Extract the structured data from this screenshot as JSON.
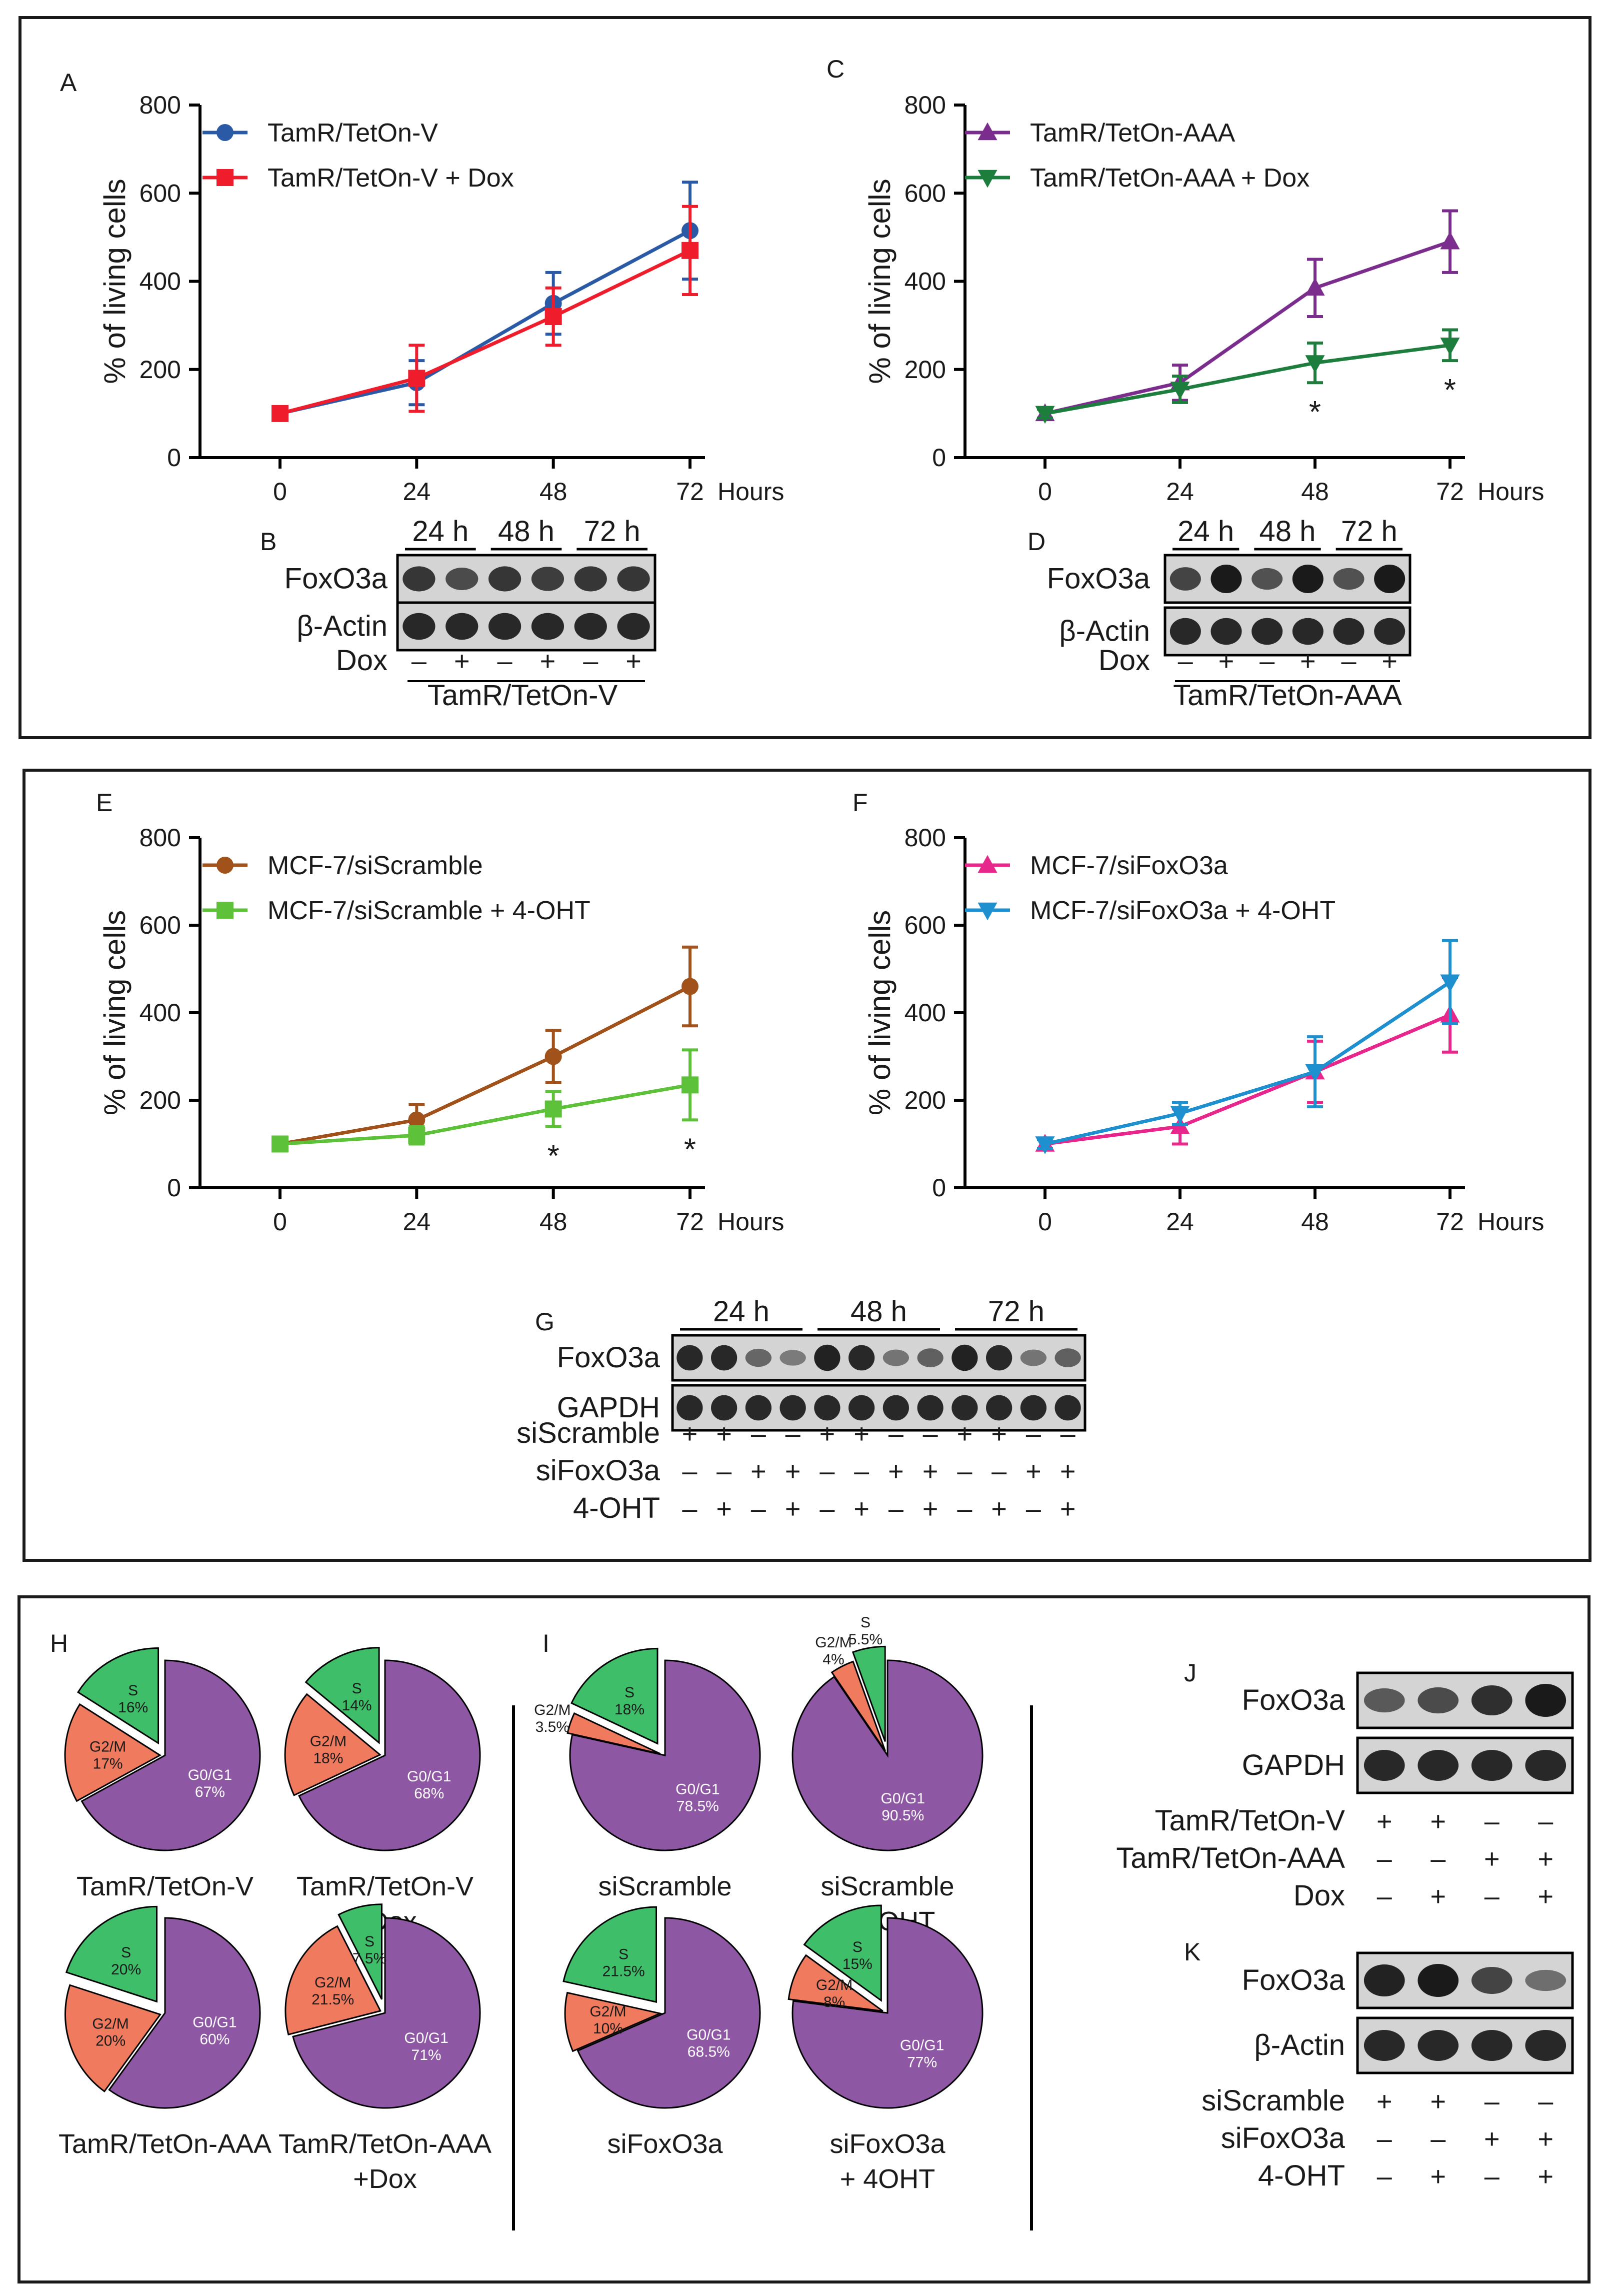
{
  "colors": {
    "tetonV": "#2a5aa6",
    "tetonVDox": "#ef1c2c",
    "tetonAAA": "#7b2d8e",
    "tetonAAADox": "#1d7d3c",
    "siScramble": "#a0521a",
    "siScrambleOHT": "#5ec13a",
    "siFoxO3a": "#e8278c",
    "siFoxO3aOHT": "#1e90cf",
    "pieG0G1": "#8e57a4",
    "pieG2M": "#ef7a5e",
    "pieS": "#3fbe6a",
    "blotBand": "#1a1a1a",
    "blotBg": "#d4d4d4"
  },
  "chart_data": [
    {
      "id": "A",
      "type": "line",
      "letter": "A",
      "xlabel": "Hours",
      "ylabel": "% of living cells",
      "x": [
        0,
        24,
        48,
        72
      ],
      "ylim": [
        0,
        800
      ],
      "yticks": [
        "0",
        "200",
        "400",
        "600",
        "800"
      ],
      "xticks": [
        "0",
        "24",
        "48",
        "72"
      ],
      "series": [
        {
          "name": "TamR/TetOn-V",
          "color": "tetonV",
          "marker": "circle",
          "values": [
            100,
            170,
            350,
            515
          ],
          "errors": [
            0,
            50,
            70,
            110
          ]
        },
        {
          "name": "TamR/TetOn-V + Dox",
          "color": "tetonVDox",
          "marker": "square",
          "values": [
            100,
            180,
            320,
            470
          ],
          "errors": [
            0,
            75,
            65,
            100
          ]
        }
      ],
      "stars": []
    },
    {
      "id": "C",
      "type": "line",
      "letter": "C",
      "xlabel": "Hours",
      "ylabel": "% of living cells",
      "x": [
        0,
        24,
        48,
        72
      ],
      "ylim": [
        0,
        800
      ],
      "yticks": [
        "0",
        "200",
        "400",
        "600",
        "800"
      ],
      "xticks": [
        "0",
        "24",
        "48",
        "72"
      ],
      "series": [
        {
          "name": "TamR/TetOn-AAA",
          "color": "tetonAAA",
          "marker": "triangle-up",
          "values": [
            100,
            170,
            385,
            490
          ],
          "errors": [
            0,
            40,
            65,
            70
          ]
        },
        {
          "name": "TamR/TetOn-AAA + Dox",
          "color": "tetonAAADox",
          "marker": "triangle-down",
          "values": [
            100,
            155,
            215,
            255
          ],
          "errors": [
            10,
            30,
            45,
            35
          ]
        }
      ],
      "stars": [
        {
          "x": 48,
          "label": "*"
        },
        {
          "x": 72,
          "label": "*"
        }
      ]
    },
    {
      "id": "E",
      "type": "line",
      "letter": "E",
      "xlabel": "Hours",
      "ylabel": "% of living cells",
      "x": [
        0,
        24,
        48,
        72
      ],
      "ylim": [
        0,
        800
      ],
      "yticks": [
        "0",
        "200",
        "400",
        "600",
        "800"
      ],
      "xticks": [
        "0",
        "24",
        "48",
        "72"
      ],
      "series": [
        {
          "name": "MCF-7/siScramble",
          "color": "siScramble",
          "marker": "circle",
          "values": [
            100,
            155,
            300,
            460
          ],
          "errors": [
            0,
            35,
            60,
            90
          ]
        },
        {
          "name": "MCF-7/siScramble + 4-OHT",
          "color": "siScrambleOHT",
          "marker": "square",
          "values": [
            100,
            120,
            180,
            235
          ],
          "errors": [
            0,
            20,
            40,
            80
          ]
        }
      ],
      "stars": [
        {
          "x": 48,
          "label": "*"
        },
        {
          "x": 72,
          "label": "*"
        }
      ]
    },
    {
      "id": "F",
      "type": "line",
      "letter": "F",
      "xlabel": "Hours",
      "ylabel": "% of living cells",
      "x": [
        0,
        24,
        48,
        72
      ],
      "ylim": [
        0,
        800
      ],
      "yticks": [
        "0",
        "200",
        "400",
        "600",
        "800"
      ],
      "xticks": [
        "0",
        "24",
        "48",
        "72"
      ],
      "series": [
        {
          "name": "MCF-7/siFoxO3a",
          "color": "siFoxO3a",
          "marker": "triangle-up",
          "values": [
            100,
            140,
            265,
            395
          ],
          "errors": [
            0,
            40,
            70,
            85
          ]
        },
        {
          "name": "MCF-7/siFoxO3a + 4-OHT",
          "color": "siFoxO3aOHT",
          "marker": "triangle-down",
          "values": [
            100,
            170,
            265,
            470
          ],
          "errors": [
            10,
            25,
            80,
            95
          ]
        }
      ],
      "stars": []
    },
    {
      "id": "H",
      "type": "pie",
      "letter": "H",
      "pies": [
        {
          "name": "TamR/TetOn-V",
          "slices": [
            {
              "label": "G0/G1",
              "pct": "67%",
              "value": 67
            },
            {
              "label": "G2/M",
              "pct": "17%",
              "value": 17
            },
            {
              "label": "S",
              "pct": "16%",
              "value": 16
            }
          ]
        },
        {
          "name": "TamR/TetOn-V",
          "name2": "+Dox",
          "slices": [
            {
              "label": "G0/G1",
              "pct": "68%",
              "value": 68
            },
            {
              "label": "G2/M",
              "pct": "18%",
              "value": 18
            },
            {
              "label": "S",
              "pct": "14%",
              "value": 14
            }
          ]
        },
        {
          "name": "TamR/TetOn-AAA",
          "slices": [
            {
              "label": "G0/G1",
              "pct": "60%",
              "value": 60
            },
            {
              "label": "G2/M",
              "pct": "20%",
              "value": 20
            },
            {
              "label": "S",
              "pct": "20%",
              "value": 20
            }
          ]
        },
        {
          "name": "TamR/TetOn-AAA",
          "name2": "+Dox",
          "slices": [
            {
              "label": "G0/G1",
              "pct": "71%",
              "value": 71
            },
            {
              "label": "G2/M",
              "pct": "21.5%",
              "value": 21.5
            },
            {
              "label": "S",
              "pct": "7.5%",
              "value": 7.5
            }
          ]
        }
      ]
    },
    {
      "id": "I",
      "type": "pie",
      "letter": "I",
      "pies": [
        {
          "name": "siScramble",
          "slices": [
            {
              "label": "G0/G1",
              "pct": "78.5%",
              "value": 78.5
            },
            {
              "label": "G2/M",
              "pct": "3.5%",
              "value": 3.5
            },
            {
              "label": "S",
              "pct": "18%",
              "value": 18
            }
          ]
        },
        {
          "name": "siScramble",
          "name2": "+ 4OHT",
          "slices": [
            {
              "label": "G0/G1",
              "pct": "90.5%",
              "value": 90.5
            },
            {
              "label": "G2/M",
              "pct": "4%",
              "value": 4
            },
            {
              "label": "S",
              "pct": "5.5%",
              "value": 5.5
            }
          ]
        },
        {
          "name": "siFoxO3a",
          "slices": [
            {
              "label": "G0/G1",
              "pct": "68.5%",
              "value": 68.5
            },
            {
              "label": "G2/M",
              "pct": "10%",
              "value": 10
            },
            {
              "label": "S",
              "pct": "21.5%",
              "value": 21.5
            }
          ]
        },
        {
          "name": "siFoxO3a",
          "name2": "+ 4OHT",
          "slices": [
            {
              "label": "G0/G1",
              "pct": "77%",
              "value": 77
            },
            {
              "label": "G2/M",
              "pct": "8%",
              "value": 8
            },
            {
              "label": "S",
              "pct": "15%",
              "value": 15
            }
          ]
        }
      ]
    }
  ],
  "blots": {
    "B": {
      "letter": "B",
      "rows": [
        "FoxO3a",
        "β-Actin"
      ],
      "timepoints": [
        "24 h",
        "48 h",
        "72 h"
      ],
      "treatment_label": "Dox",
      "treatment_signs": [
        "–",
        "+",
        "–",
        "+",
        "–",
        "+"
      ],
      "caption": "TamR/TetOn-V",
      "intensity": [
        [
          0.8,
          0.65,
          0.8,
          0.75,
          0.8,
          0.8
        ],
        [
          0.9,
          0.9,
          0.9,
          0.9,
          0.9,
          0.9
        ]
      ]
    },
    "D": {
      "letter": "D",
      "rows": [
        "FoxO3a",
        "β-Actin"
      ],
      "timepoints": [
        "24 h",
        "48 h",
        "72 h"
      ],
      "treatment_label": "Dox",
      "treatment_signs": [
        "–",
        "+",
        "–",
        "+",
        "–",
        "+"
      ],
      "caption": "TamR/TetOn-AAA",
      "intensity": [
        [
          0.7,
          1.0,
          0.6,
          1.0,
          0.6,
          1.0
        ],
        [
          0.9,
          0.9,
          0.9,
          0.9,
          0.9,
          0.9
        ]
      ]
    },
    "G": {
      "letter": "G",
      "rows": [
        "FoxO3a",
        "GAPDH"
      ],
      "timepoints": [
        "24 h",
        "48 h",
        "72 h"
      ],
      "conditions": [
        {
          "label": "siScramble",
          "signs": [
            "+",
            "+",
            "–",
            "–",
            "+",
            "+",
            "–",
            "–",
            "+",
            "+",
            "–",
            "–"
          ]
        },
        {
          "label": "siFoxO3a",
          "signs": [
            "–",
            "–",
            "+",
            "+",
            "–",
            "–",
            "+",
            "+",
            "–",
            "–",
            "+",
            "+"
          ]
        },
        {
          "label": "4-OHT",
          "signs": [
            "–",
            "+",
            "–",
            "+",
            "–",
            "+",
            "–",
            "+",
            "–",
            "+",
            "–",
            "+"
          ]
        }
      ],
      "intensity": [
        [
          0.9,
          0.9,
          0.45,
          0.3,
          0.95,
          0.9,
          0.35,
          0.5,
          0.95,
          0.9,
          0.35,
          0.5
        ],
        [
          0.9,
          0.9,
          0.9,
          0.9,
          0.9,
          0.9,
          0.9,
          0.9,
          0.9,
          0.9,
          0.9,
          0.9
        ]
      ]
    },
    "J": {
      "letter": "J",
      "rows": [
        "FoxO3a",
        "GAPDH"
      ],
      "conditions": [
        {
          "label": "TamR/TetOn-V",
          "signs": [
            "+",
            "+",
            "–",
            "–"
          ]
        },
        {
          "label": "TamR/TetOn-AAA",
          "signs": [
            "–",
            "–",
            "+",
            "+"
          ]
        },
        {
          "label": "Dox",
          "signs": [
            "–",
            "+",
            "–",
            "+"
          ]
        }
      ],
      "intensity": [
        [
          0.55,
          0.65,
          0.85,
          1.0
        ],
        [
          0.9,
          0.9,
          0.9,
          0.9
        ]
      ]
    },
    "K": {
      "letter": "K",
      "rows": [
        "FoxO3a",
        "β-Actin"
      ],
      "conditions": [
        {
          "label": "siScramble",
          "signs": [
            "+",
            "+",
            "–",
            "–"
          ]
        },
        {
          "label": "siFoxO3a",
          "signs": [
            "–",
            "–",
            "+",
            "+"
          ]
        },
        {
          "label": "4-OHT",
          "signs": [
            "–",
            "+",
            "–",
            "+"
          ]
        }
      ],
      "intensity": [
        [
          0.95,
          1.0,
          0.7,
          0.4
        ],
        [
          0.9,
          0.9,
          0.9,
          0.9
        ]
      ]
    }
  }
}
